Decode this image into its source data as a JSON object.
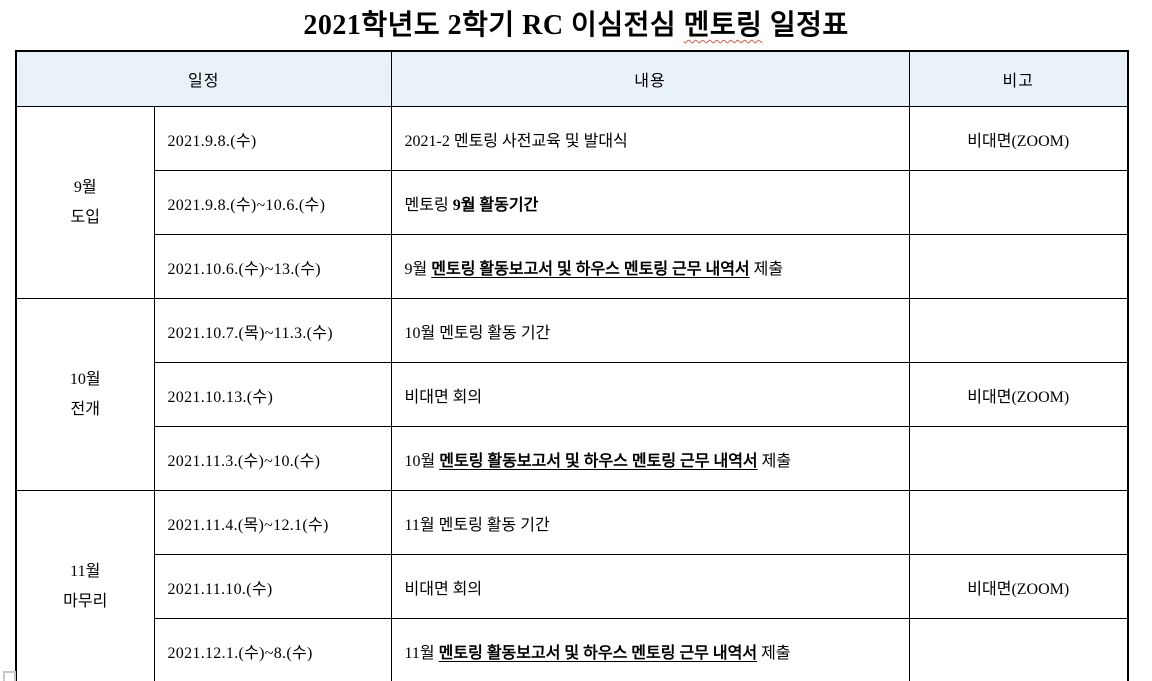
{
  "title": {
    "prefix": "2021학년도 2학기 RC 이심전심 ",
    "spellcheck_word": "멘토링",
    "suffix": " 일정표"
  },
  "colors": {
    "header_bg": "#e9f1f9",
    "table_border": "#000000",
    "spellcheck_underline": "#e8553a",
    "handle_border": "#c9c9c9"
  },
  "table": {
    "headers": {
      "schedule": "일정",
      "content": "내용",
      "note": "비고"
    },
    "groups": [
      {
        "month": "9월",
        "phase": "도입",
        "rows": [
          {
            "date": "2021.9.8.(수)",
            "content": [
              {
                "text": "2021-2 멘토링 사전교육 및 발대식"
              }
            ],
            "note": "비대면(ZOOM)"
          },
          {
            "date": "2021.9.8.(수)~10.6.(수)",
            "content": [
              {
                "text": "멘토링 "
              },
              {
                "text": "9월 활동기간",
                "bold": true
              }
            ],
            "note": ""
          },
          {
            "date": "2021.10.6.(수)~13.(수)",
            "content": [
              {
                "text": "9월 "
              },
              {
                "text": "멘토링 활동보고서 및 하우스 멘토링 근무 내역서",
                "bold": true,
                "underline": true
              },
              {
                "text": " 제출"
              }
            ],
            "note": ""
          }
        ]
      },
      {
        "month": "10월",
        "phase": "전개",
        "rows": [
          {
            "date": "2021.10.7.(목)~11.3.(수)",
            "content": [
              {
                "text": "10월 멘토링 활동 기간"
              }
            ],
            "note": ""
          },
          {
            "date": "2021.10.13.(수)",
            "content": [
              {
                "text": "비대면 회의"
              }
            ],
            "note": "비대면(ZOOM)"
          },
          {
            "date": "2021.11.3.(수)~10.(수)",
            "content": [
              {
                "text": "10월 "
              },
              {
                "text": "멘토링 활동보고서 및 하우스 멘토링 근무 내역서",
                "bold": true,
                "underline": true
              },
              {
                "text": " 제출"
              }
            ],
            "note": ""
          }
        ]
      },
      {
        "month": "11월",
        "phase": "마무리",
        "rows": [
          {
            "date": "2021.11.4.(목)~12.1(수)",
            "content": [
              {
                "text": "11월 멘토링 활동 기간"
              }
            ],
            "note": ""
          },
          {
            "date": "2021.11.10.(수)",
            "content": [
              {
                "text": "비대면 회의"
              }
            ],
            "note": "비대면(ZOOM)"
          },
          {
            "date": "2021.12.1.(수)~8.(수)",
            "content": [
              {
                "text": "11월 "
              },
              {
                "text": "멘토링 활동보고서 및 하우스 멘토링 근무 내역서",
                "bold": true,
                "underline": true
              },
              {
                "text": " 제출"
              }
            ],
            "note": ""
          }
        ]
      }
    ]
  }
}
